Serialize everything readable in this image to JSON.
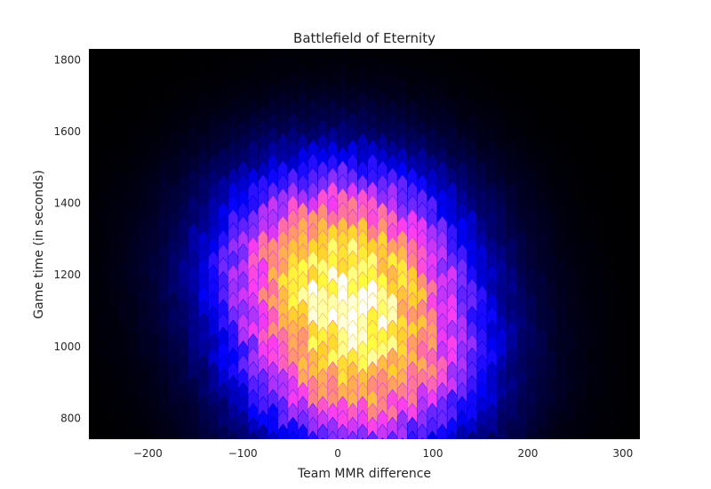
{
  "chart_data": {
    "type": "heatmap",
    "subtype": "hexbin",
    "title": "Battlefield of Eternity",
    "xlabel": "Team MMR difference",
    "ylabel": "Game time (in seconds)",
    "xlim": [
      -262,
      318
    ],
    "ylim": [
      740,
      1830
    ],
    "xticks": [
      -200,
      -100,
      0,
      100,
      200,
      300
    ],
    "xtick_labels": [
      "−200",
      "−100",
      "0",
      "100",
      "200",
      "300"
    ],
    "yticks": [
      800,
      1000,
      1200,
      1400,
      1600,
      1800
    ],
    "ytick_labels": [
      "800",
      "1000",
      "1200",
      "1400",
      "1600",
      "1800"
    ],
    "colormap": "gnuplot2",
    "colormap_stops": [
      "#000000",
      "#00006e",
      "#0000ff",
      "#7a2cff",
      "#ff3cf0",
      "#ff8c78",
      "#ffd22a",
      "#ffff40",
      "#ffffff"
    ],
    "grid": false,
    "background": "#000000",
    "density_hotspots": [
      {
        "x": 0,
        "y": 1220,
        "relative_density": 1.0
      },
      {
        "x": 30,
        "y": 950,
        "relative_density": 0.85
      }
    ],
    "density_spread": {
      "x_std": 75,
      "y_std": 170
    }
  }
}
